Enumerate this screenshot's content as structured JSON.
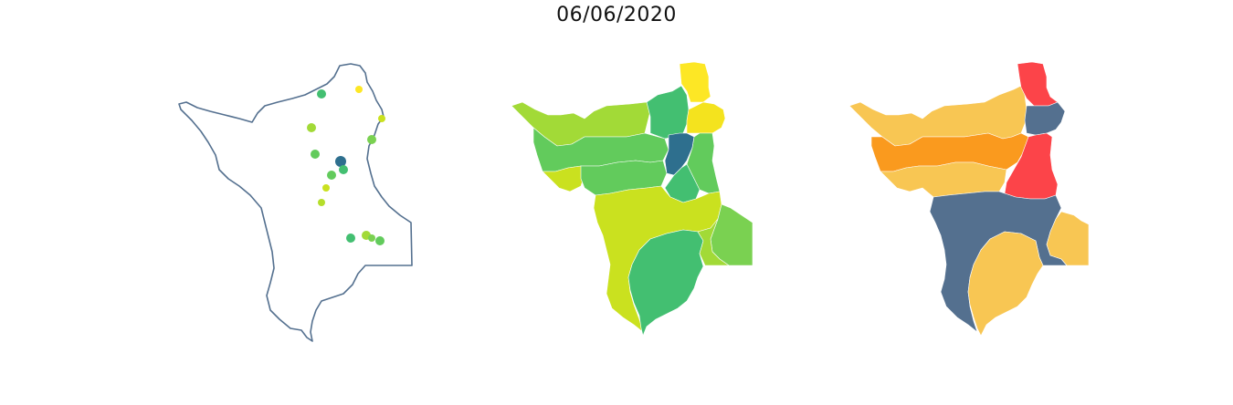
{
  "title": "06/06/2020",
  "colors": {
    "outline": "#54708f",
    "viridis_dark": "#2e6f8e",
    "viridis_green": "#43bf71",
    "viridis_mid": "#62cb5c",
    "viridis_light": "#a2da37",
    "viridis_lime": "#cae11f",
    "viridis_yellow": "#fde725",
    "risk_red": "#fc4449",
    "risk_orange": "#fa9a1e",
    "risk_yellow": "#f8c653",
    "risk_slate": "#54708f"
  },
  "panels": [
    {
      "name": "station-points-map"
    },
    {
      "name": "viridis-choropleth-map"
    },
    {
      "name": "risk-category-map"
    }
  ]
}
